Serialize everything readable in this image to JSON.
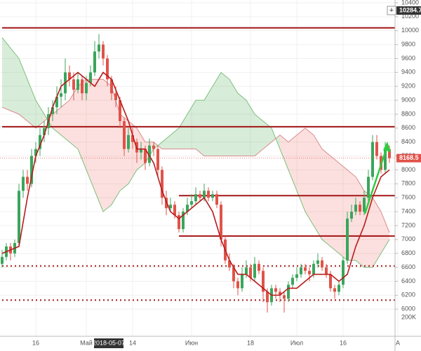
{
  "chart_data": {
    "type": "candlestick",
    "ylim": [
      5610,
      10440
    ],
    "yticks": [
      6000,
      6200,
      6400,
      6600,
      6800,
      7000,
      7200,
      7400,
      7600,
      7800,
      8000,
      8200,
      8400,
      8600,
      8800,
      9000,
      9200,
      9400,
      9600,
      9800,
      10000,
      10200,
      10400
    ],
    "xticks": [
      {
        "value": 8,
        "label": "16"
      },
      {
        "value": 20,
        "label": "Май"
      },
      {
        "value": 31,
        "label": "14"
      },
      {
        "value": 45,
        "label": "Июн"
      },
      {
        "value": 59,
        "label": "18"
      },
      {
        "value": 70,
        "label": "Июл"
      },
      {
        "value": 81,
        "label": "16"
      },
      {
        "value": 94,
        "label": "А"
      }
    ],
    "crosshair_time_label": "2018-05-07",
    "crosshair_price_label": "10284.7",
    "last_price_label": "8168.5",
    "volume_axis_label": "200K",
    "up_color": "#3ba55c",
    "down_color": "#e0534a",
    "ohlc": [
      [
        6650,
        6850,
        6600,
        6750
      ],
      [
        6750,
        6950,
        6700,
        6900
      ],
      [
        6900,
        6950,
        6700,
        6800
      ],
      [
        6800,
        7000,
        6750,
        6950
      ],
      [
        6950,
        7800,
        6900,
        7700
      ],
      [
        7700,
        8000,
        7600,
        7900
      ],
      [
        7900,
        8000,
        7700,
        7800
      ],
      [
        7800,
        8300,
        7750,
        8200
      ],
      [
        8200,
        8400,
        8100,
        8300
      ],
      [
        8300,
        8600,
        8200,
        8500
      ],
      [
        8500,
        8700,
        8400,
        8600
      ],
      [
        8600,
        8900,
        8500,
        8800
      ],
      [
        8800,
        9000,
        8700,
        8900
      ],
      [
        8900,
        9200,
        8800,
        9050
      ],
      [
        9050,
        9300,
        8900,
        9100
      ],
      [
        9100,
        9600,
        9000,
        9400
      ],
      [
        9400,
        9500,
        9200,
        9300
      ],
      [
        9300,
        9400,
        9000,
        9150
      ],
      [
        9150,
        9400,
        9100,
        9300
      ],
      [
        9300,
        9350,
        9000,
        9100
      ],
      [
        9100,
        9350,
        9000,
        9250
      ],
      [
        9250,
        9500,
        9200,
        9400
      ],
      [
        9400,
        9850,
        9350,
        9700
      ],
      [
        9700,
        9950,
        9600,
        9800
      ],
      [
        9800,
        9850,
        9500,
        9600
      ],
      [
        9600,
        9650,
        9200,
        9300
      ],
      [
        9300,
        9350,
        9000,
        9100
      ],
      [
        9100,
        9200,
        8900,
        9000
      ],
      [
        9000,
        9050,
        8600,
        8700
      ],
      [
        8700,
        8750,
        8200,
        8300
      ],
      [
        8300,
        8600,
        8250,
        8500
      ],
      [
        8500,
        8600,
        8300,
        8400
      ],
      [
        8400,
        8450,
        8100,
        8250
      ],
      [
        8250,
        8400,
        8150,
        8300
      ],
      [
        8300,
        8350,
        8000,
        8100
      ],
      [
        8100,
        8450,
        8050,
        8350
      ],
      [
        8350,
        8400,
        8200,
        8300
      ],
      [
        8300,
        8350,
        7900,
        8000
      ],
      [
        8000,
        8050,
        7500,
        7600
      ],
      [
        7600,
        7700,
        7350,
        7450
      ],
      [
        7450,
        7600,
        7400,
        7500
      ],
      [
        7500,
        7550,
        7300,
        7350
      ],
      [
        7350,
        7400,
        7100,
        7150
      ],
      [
        7150,
        7450,
        7100,
        7400
      ],
      [
        7400,
        7600,
        7350,
        7500
      ],
      [
        7500,
        7650,
        7450,
        7550
      ],
      [
        7550,
        7750,
        7500,
        7650
      ],
      [
        7650,
        7700,
        7550,
        7600
      ],
      [
        7600,
        7800,
        7550,
        7700
      ],
      [
        7700,
        7750,
        7550,
        7600
      ],
      [
        7600,
        7700,
        7550,
        7650
      ],
      [
        7650,
        7700,
        7450,
        7500
      ],
      [
        7500,
        7550,
        6900,
        7000
      ],
      [
        7000,
        7050,
        6650,
        6700
      ],
      [
        6700,
        6800,
        6550,
        6600
      ],
      [
        6600,
        6650,
        6300,
        6400
      ],
      [
        6400,
        6450,
        6200,
        6300
      ],
      [
        6300,
        6600,
        6250,
        6500
      ],
      [
        6500,
        6700,
        6450,
        6600
      ],
      [
        6600,
        6650,
        6400,
        6450
      ],
      [
        6450,
        6750,
        6400,
        6650
      ],
      [
        6650,
        6700,
        6500,
        6550
      ],
      [
        6550,
        6600,
        6100,
        6250
      ],
      [
        6250,
        6300,
        5950,
        6100
      ],
      [
        6100,
        6350,
        6050,
        6300
      ],
      [
        6300,
        6350,
        6150,
        6250
      ],
      [
        6250,
        6300,
        6100,
        6200
      ],
      [
        6200,
        6250,
        5950,
        6150
      ],
      [
        6150,
        6400,
        6100,
        6350
      ],
      [
        6350,
        6500,
        6300,
        6450
      ],
      [
        6450,
        6600,
        6400,
        6500
      ],
      [
        6500,
        6650,
        6450,
        6600
      ],
      [
        6600,
        6650,
        6500,
        6550
      ],
      [
        6550,
        6600,
        6400,
        6500
      ],
      [
        6500,
        6700,
        6450,
        6650
      ],
      [
        6650,
        6800,
        6600,
        6700
      ],
      [
        6700,
        6750,
        6550,
        6600
      ],
      [
        6600,
        6650,
        6450,
        6500
      ],
      [
        6500,
        6550,
        6250,
        6300
      ],
      [
        6300,
        6350,
        6150,
        6250
      ],
      [
        6250,
        6400,
        6200,
        6350
      ],
      [
        6350,
        6750,
        6300,
        6700
      ],
      [
        6700,
        7400,
        6650,
        7300
      ],
      [
        7300,
        7500,
        7250,
        7400
      ],
      [
        7400,
        7600,
        7350,
        7500
      ],
      [
        7500,
        7550,
        7350,
        7400
      ],
      [
        7400,
        7700,
        7350,
        7600
      ],
      [
        7600,
        8000,
        7550,
        7900
      ],
      [
        7900,
        8500,
        7850,
        8400
      ],
      [
        8400,
        8500,
        8150,
        8200
      ],
      [
        8200,
        8250,
        7950,
        8000
      ],
      [
        8000,
        8400,
        7950,
        8300
      ],
      [
        8300,
        8350,
        8100,
        8168.5
      ]
    ],
    "cloud": {
      "span_a": [
        9900,
        9750,
        9600,
        9300,
        9000,
        8800,
        8600,
        8500,
        8400,
        8300,
        8000,
        7700,
        7400,
        7500,
        7700,
        7800,
        8000,
        8100,
        8300,
        8400,
        8500,
        8600,
        8800,
        9000,
        9000,
        9200,
        9400,
        9300,
        9100,
        9000,
        8800,
        8700,
        8600,
        8300,
        8000,
        7700,
        7400,
        7200,
        7000,
        6900,
        6800,
        6700,
        6700,
        6600,
        6600,
        6800,
        7000
      ],
      "span_b": [
        8900,
        8850,
        8800,
        8700,
        8600,
        8700,
        8800,
        8900,
        9000,
        9200,
        9300,
        9300,
        9300,
        9200,
        8800,
        8700,
        8600,
        8400,
        8400,
        8300,
        8300,
        8300,
        8300,
        8300,
        8200,
        8200,
        8200,
        8200,
        8200,
        8200,
        8200,
        8300,
        8400,
        8500,
        8400,
        8500,
        8600,
        8500,
        8300,
        8200,
        8100,
        8000,
        7900,
        7700,
        7600,
        7400,
        7100
      ],
      "span_a_color": "#7cbf7c",
      "span_b_color": "#d98a8a",
      "up_fill": "rgba(76,175,80,0.22)",
      "down_fill": "rgba(239,83,80,0.18)"
    },
    "series": [
      {
        "color": "#b71c1c",
        "values": [
          6800,
          6850,
          6900,
          7600,
          8200,
          8500,
          8900,
          9200,
          9300,
          9400,
          9300,
          9200,
          9400,
          9300,
          9000,
          8700,
          8300,
          8300,
          8100,
          7700,
          7400,
          7300,
          7400,
          7500,
          7600,
          7400,
          7000,
          6700,
          6500,
          6500,
          6400,
          6300,
          6200,
          6200,
          6300,
          6300,
          6400,
          6500,
          6500,
          6500,
          6400,
          6500,
          6900,
          7200,
          7600,
          7900,
          8000
        ]
      }
    ],
    "levels": [
      {
        "value": 10040,
        "from": 0,
        "style": "solid"
      },
      {
        "value": 8620,
        "from": 0,
        "style": "solid"
      },
      {
        "value": 7630,
        "from": 42,
        "style": "solid"
      },
      {
        "value": 7050,
        "from": 42,
        "style": "solid"
      },
      {
        "value": 6620,
        "from": 0,
        "style": "dotted"
      },
      {
        "value": 6130,
        "from": 0,
        "style": "dotted"
      }
    ],
    "level_color": "#a31515",
    "grid": true
  }
}
